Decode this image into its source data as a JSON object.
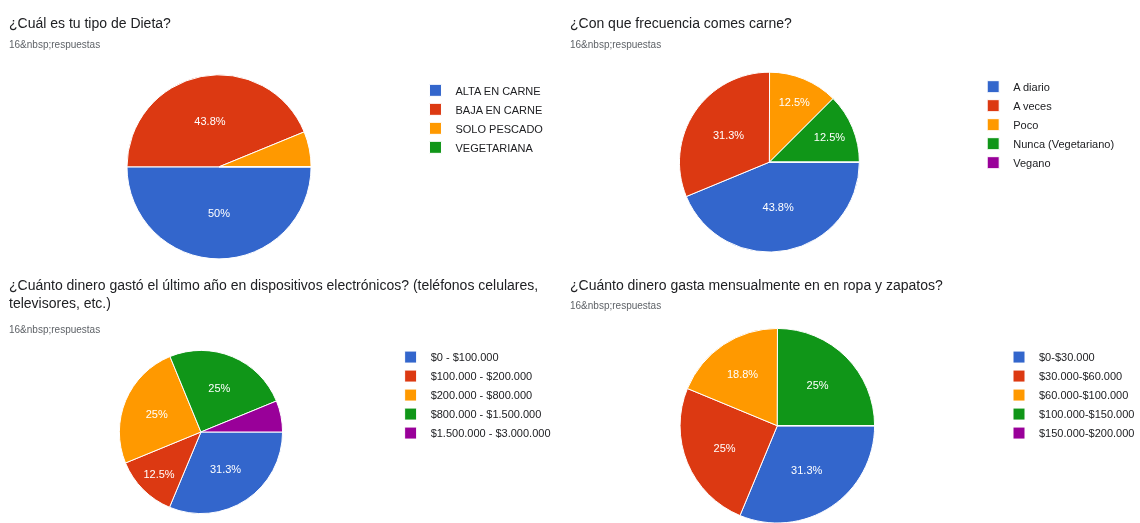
{
  "chart_data": [
    {
      "type": "pie",
      "title": "¿Cuál es tu tipo de Dieta?",
      "subtitle": "16&nbsp;respuestas",
      "categories": [
        "ALTA EN CARNE",
        "BAJA EN CARNE",
        "SOLO PESCADO",
        "VEGETARIANA"
      ],
      "values": [
        50,
        43.8,
        6.2,
        0
      ],
      "value_labels": [
        "50%",
        "43.8%",
        null,
        null
      ],
      "colors": [
        "#3366cc",
        "#dc3912",
        "#ff9900",
        "#109618"
      ],
      "legend": "right"
    },
    {
      "type": "pie",
      "title": "¿Con que frecuencia comes carne?",
      "subtitle": "16&nbsp;respuestas",
      "categories": [
        "A diario",
        "A veces",
        "Poco",
        "Nunca (Vegetariano)",
        "Vegano"
      ],
      "values": [
        43.8,
        31.3,
        12.5,
        12.5,
        0
      ],
      "value_labels": [
        "43.8%",
        "31.3%",
        "12.5%",
        "12.5%",
        null
      ],
      "colors": [
        "#3366cc",
        "#dc3912",
        "#ff9900",
        "#109618",
        "#990099"
      ],
      "legend": "right"
    },
    {
      "type": "pie",
      "title": "¿Cuánto dinero gastó el último año en dispositivos electrónicos? (teléfonos celulares, televisores, etc.)",
      "subtitle": "16&nbsp;respuestas",
      "categories": [
        "$0 - $100.000",
        "$100.000 - $200.000",
        "$200.000 - $800.000",
        "$800.000 - $1.500.000",
        "$1.500.000 - $3.000.000"
      ],
      "values": [
        31.3,
        12.5,
        25,
        25,
        6.2
      ],
      "value_labels": [
        "31.3%",
        "12.5%",
        "25%",
        "25%",
        null
      ],
      "colors": [
        "#3366cc",
        "#dc3912",
        "#ff9900",
        "#109618",
        "#990099"
      ],
      "legend": "right"
    },
    {
      "type": "pie",
      "title": "¿Cuánto dinero gasta mensualmente en en ropa y zapatos?",
      "subtitle": "16&nbsp;respuestas",
      "categories": [
        "$0-$30.000",
        "$30.000-$60.000",
        "$60.000-$100.000",
        "$100.000-$150.000",
        "$150.000-$200.000"
      ],
      "values": [
        31.3,
        25,
        18.8,
        25,
        0
      ],
      "value_labels": [
        "31.3%",
        "25%",
        "18.8%",
        "25%",
        null
      ],
      "colors": [
        "#3366cc",
        "#dc3912",
        "#ff9900",
        "#109618",
        "#990099"
      ],
      "legend": "right"
    }
  ]
}
